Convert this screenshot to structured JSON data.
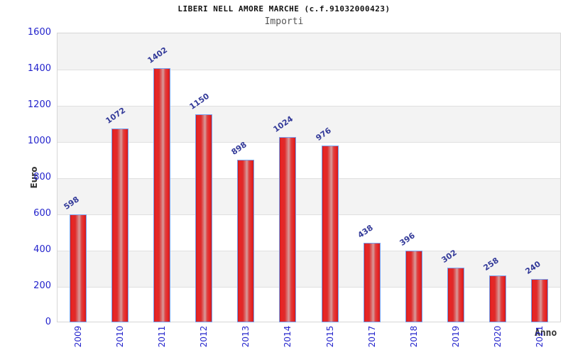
{
  "chart_data": {
    "type": "bar",
    "title": "LIBERI NELL AMORE MARCHE (c.f.91032000423)",
    "subtitle": "Importi",
    "xlabel": "Anno",
    "ylabel": "Euro",
    "categories": [
      "2009",
      "2010",
      "2011",
      "2012",
      "2013",
      "2014",
      "2015",
      "2017",
      "2018",
      "2019",
      "2020",
      "2021"
    ],
    "values": [
      598,
      1072,
      1402,
      1150,
      898,
      1024,
      976,
      438,
      396,
      302,
      258,
      240
    ],
    "ylim": [
      0,
      1600
    ],
    "yticks": [
      0,
      200,
      400,
      600,
      800,
      1000,
      1200,
      1400,
      1600
    ],
    "grid": "horizontal-bands-alternating",
    "legend_position": "none",
    "colors": {
      "bar_fill": "#e32222",
      "bar_highlight": "#d89b9b",
      "bar_border": "#76a0f0",
      "tick_label": "#2323cc",
      "value_label": "#333a99",
      "band_gray": "#f3f3f3",
      "grid_line": "#e0e0e0",
      "plot_border": "#d6d6d6",
      "title": "#111111",
      "subtitle": "#555555",
      "axis_title": "#333333"
    }
  }
}
